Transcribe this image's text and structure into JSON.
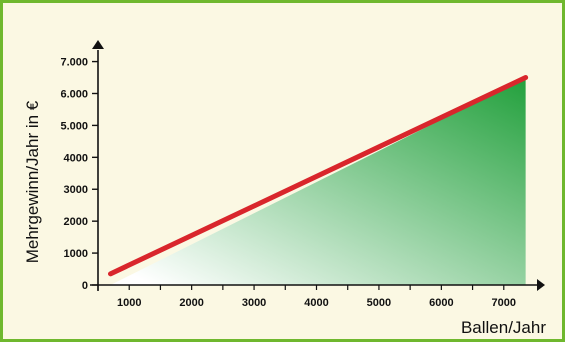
{
  "chart_data": {
    "type": "area",
    "x_axis": {
      "label": "Ballen/Jahr",
      "range": [
        500,
        7500
      ],
      "ticks": [
        1000,
        2000,
        3000,
        4000,
        5000,
        6000,
        7000
      ],
      "tick_labels": [
        "1000",
        "2000",
        "3000",
        "4000",
        "5000",
        "6000",
        "7000"
      ]
    },
    "y_axis": {
      "label": "Mehrgewinn/Jahr in €",
      "range": [
        0,
        7300
      ],
      "ticks": [
        0,
        1000,
        2000,
        3000,
        4000,
        5000,
        6000,
        7000
      ],
      "tick_labels": [
        "0",
        "1000",
        "2000",
        "3000",
        "4000",
        "5.000",
        "6.000",
        "7.000"
      ]
    },
    "series": [
      {
        "points": [
          [
            700,
            350
          ],
          [
            7350,
            6500
          ]
        ]
      }
    ],
    "grid": false,
    "legend": "none"
  },
  "colors": {
    "line": "#d9262c",
    "fill_start": "#ffffff",
    "fill_end": "#22a03c",
    "axis": "#111111",
    "background": "#fbf8e3",
    "border": "#6fb82e"
  }
}
